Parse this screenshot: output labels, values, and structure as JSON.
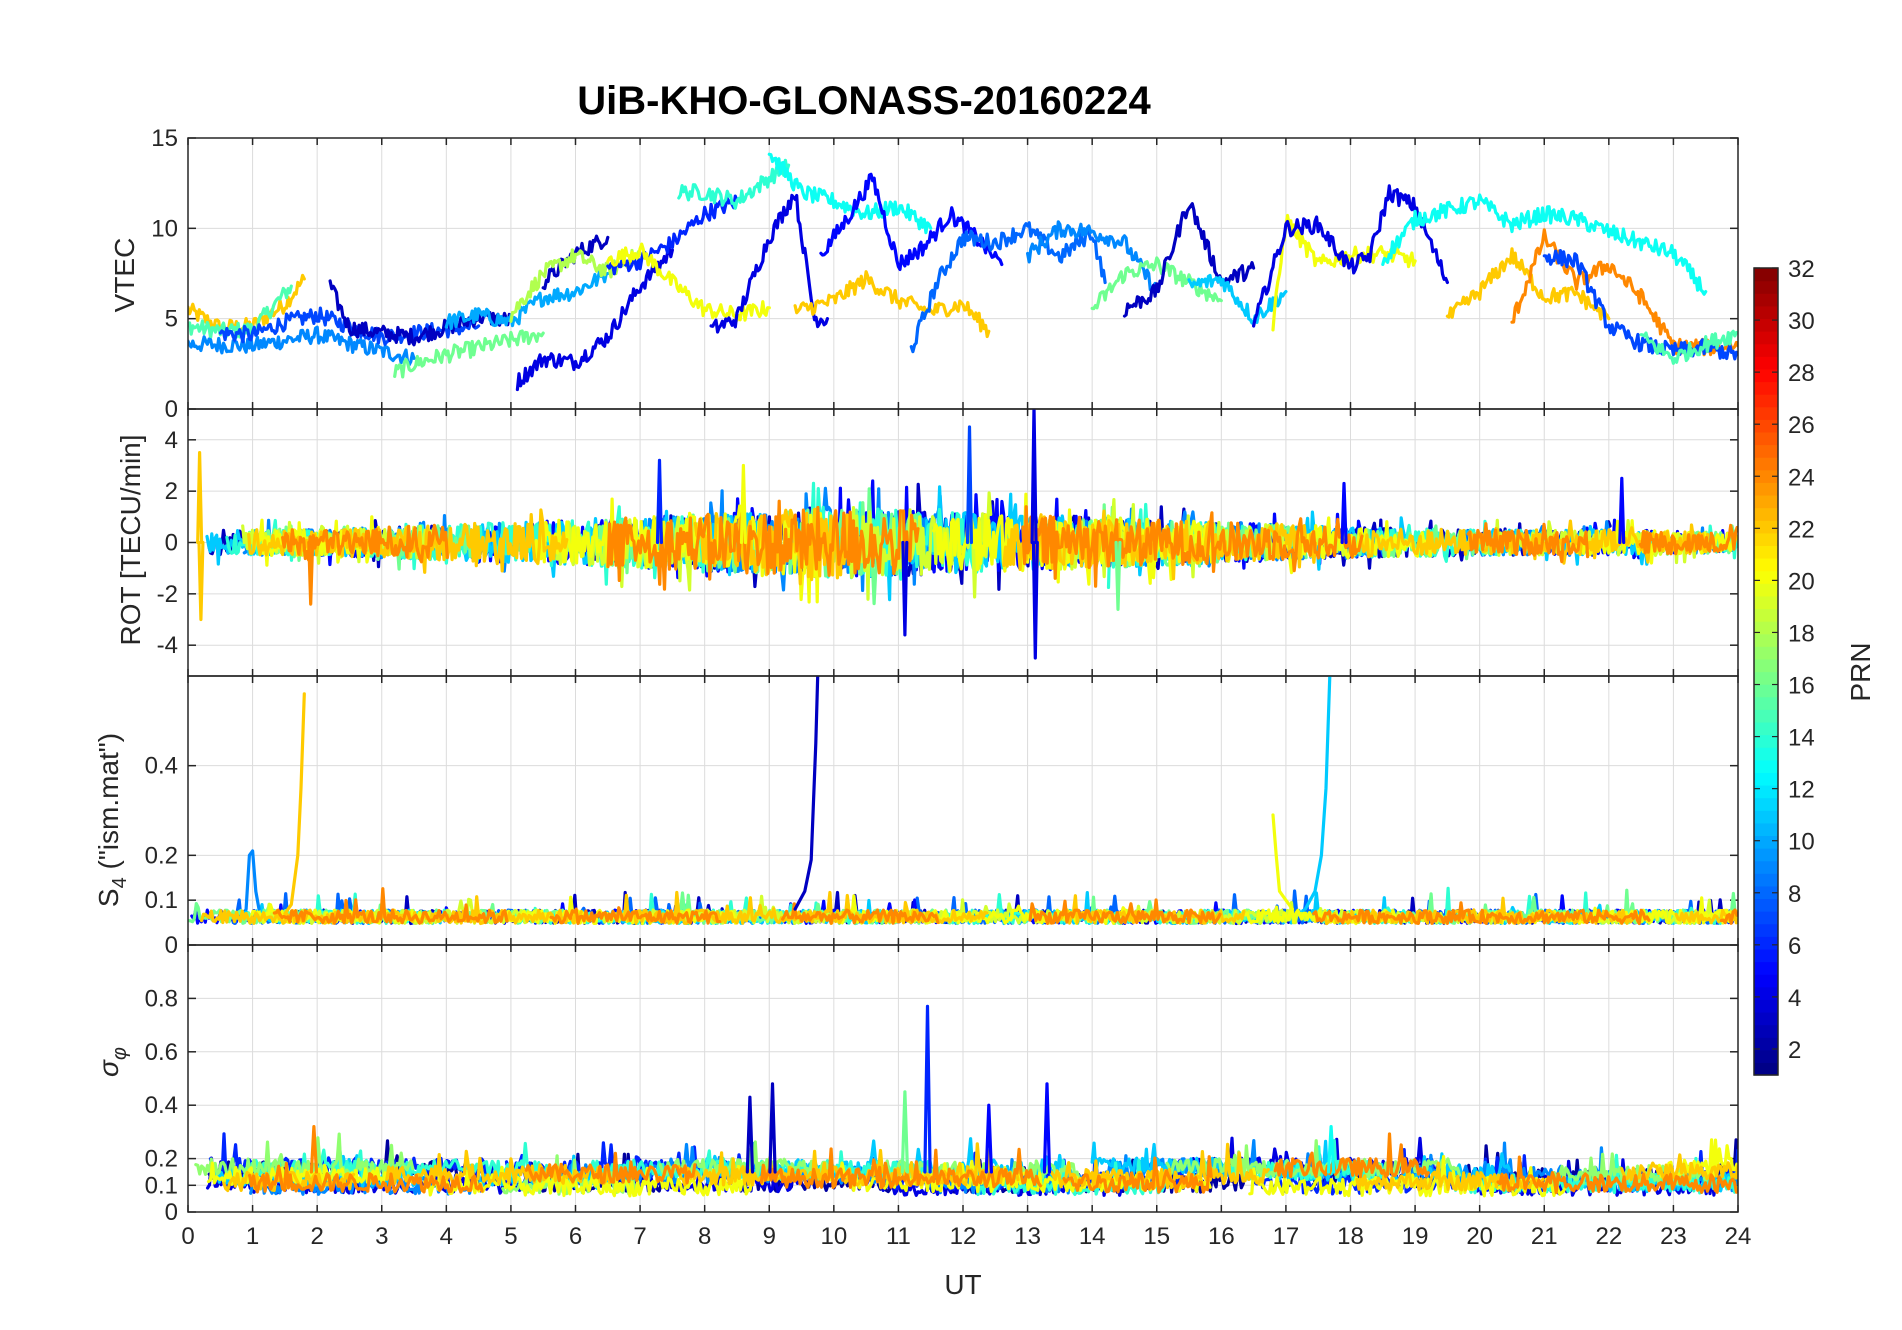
{
  "chart_data": [
    {
      "panel": "vtec",
      "type": "line",
      "title": "UiB-KHO-GLONASS-20160224",
      "xlabel": "",
      "ylabel": "VTEC",
      "xlim": [
        0,
        24
      ],
      "ylim": [
        0,
        15
      ],
      "xticks": [
        0,
        1,
        2,
        3,
        4,
        5,
        6,
        7,
        8,
        9,
        10,
        11,
        12,
        13,
        14,
        15,
        16,
        17,
        18,
        19,
        20,
        21,
        22,
        23,
        24
      ],
      "yticks": [
        0,
        5,
        10,
        15
      ],
      "ytick_labels": [
        "0",
        "5",
        "10",
        "15"
      ],
      "grid": true,
      "series": [
        {
          "prn": 22,
          "x": [
            0.0,
            0.5,
            1.0,
            1.5,
            1.8
          ],
          "y": [
            5.5,
            4.5,
            4.6,
            5.8,
            7.2
          ]
        },
        {
          "prn": 15,
          "x": [
            0.0,
            0.5,
            1.0,
            1.6
          ],
          "y": [
            4.6,
            4.3,
            4.4,
            6.8
          ]
        },
        {
          "prn": 9,
          "x": [
            0.0,
            1.0,
            2.0,
            2.5,
            3.0,
            3.5
          ],
          "y": [
            3.6,
            3.5,
            4.1,
            3.6,
            3.2,
            2.8
          ]
        },
        {
          "prn": 7,
          "x": [
            0.5,
            1.0,
            1.5,
            2.0,
            3.0,
            4.5
          ],
          "y": [
            4.2,
            4.1,
            4.8,
            5.2,
            4.0,
            4.6
          ]
        },
        {
          "prn": 3,
          "x": [
            2.2,
            2.5,
            3.0,
            3.5,
            4.0,
            4.5,
            5.0
          ],
          "y": [
            6.8,
            4.5,
            4.2,
            4.0,
            4.5,
            5.1,
            4.9
          ]
        },
        {
          "prn": 16,
          "x": [
            3.2,
            3.5,
            4.0,
            4.5,
            5.0,
            5.5
          ],
          "y": [
            2.0,
            2.5,
            3.0,
            3.4,
            3.8,
            4.2
          ]
        },
        {
          "prn": 10,
          "x": [
            4.0,
            4.5,
            5.0,
            5.5,
            6.0,
            6.5
          ],
          "y": [
            4.8,
            5.2,
            4.8,
            6.2,
            6.5,
            7.5
          ]
        },
        {
          "prn": 4,
          "x": [
            5.1,
            5.5,
            6.0,
            6.5,
            7.0,
            7.5
          ],
          "y": [
            1.5,
            2.8,
            2.6,
            4.0,
            6.8,
            8.8
          ]
        },
        {
          "prn": 3,
          "x": [
            5.5,
            6.0,
            6.5
          ],
          "y": [
            7.0,
            8.6,
            9.5
          ]
        },
        {
          "prn": 18,
          "x": [
            5.0,
            5.5,
            6.0,
            6.5,
            7.0
          ],
          "y": [
            5.2,
            7.5,
            8.5,
            7.6,
            8.6
          ]
        },
        {
          "prn": 6,
          "x": [
            6.5,
            7.0,
            7.5,
            8.0,
            8.5
          ],
          "y": [
            7.8,
            8.2,
            9.2,
            10.8,
            11.5
          ]
        },
        {
          "prn": 20,
          "x": [
            6.5,
            7.0,
            7.5,
            8.0,
            8.5,
            9.0
          ],
          "y": [
            8.2,
            8.8,
            7.0,
            5.5,
            5.2,
            5.6
          ]
        },
        {
          "prn": 14,
          "x": [
            7.6,
            8.0,
            8.5,
            9.0,
            9.3
          ],
          "y": [
            12.0,
            12.0,
            11.5,
            12.8,
            13.5
          ]
        },
        {
          "prn": 4,
          "x": [
            8.1,
            8.5,
            9.0,
            9.4,
            9.7,
            9.9
          ],
          "y": [
            4.4,
            5.0,
            9.5,
            12.0,
            5.0,
            5.0
          ]
        },
        {
          "prn": 13,
          "x": [
            9.0,
            9.5,
            10.0,
            10.5,
            11.0,
            11.5
          ],
          "y": [
            14.2,
            12.0,
            11.5,
            10.8,
            11.2,
            10.0
          ]
        },
        {
          "prn": 22,
          "x": [
            9.4,
            10.0,
            10.5,
            11.0,
            11.5,
            12.0,
            12.4
          ],
          "y": [
            5.4,
            6.0,
            7.2,
            6.0,
            5.4,
            5.8,
            4.3
          ]
        },
        {
          "prn": 5,
          "x": [
            9.8,
            10.2,
            10.6,
            11.0,
            11.4,
            11.8,
            12.2,
            12.6
          ],
          "y": [
            8.5,
            10.5,
            12.8,
            8.0,
            9.0,
            10.8,
            9.5,
            8.0
          ]
        },
        {
          "prn": 8,
          "x": [
            11.2,
            11.6,
            12.0,
            12.5,
            13.0,
            13.5,
            14.0,
            14.2
          ],
          "y": [
            3.3,
            7.0,
            9.5,
            9.2,
            10.0,
            8.4,
            9.8,
            7.0
          ]
        },
        {
          "prn": 9,
          "x": [
            13.0,
            13.5,
            14.0,
            14.5,
            15.0
          ],
          "y": [
            8.5,
            10.0,
            9.8,
            9.2,
            6.5
          ]
        },
        {
          "prn": 16,
          "x": [
            14.0,
            14.5,
            15.0,
            15.5,
            16.0
          ],
          "y": [
            5.5,
            7.5,
            8.0,
            7.0,
            6.0
          ]
        },
        {
          "prn": 3,
          "x": [
            14.5,
            15.0,
            15.5,
            16.0,
            16.5
          ],
          "y": [
            5.5,
            6.5,
            11.5,
            7.0,
            7.8
          ]
        },
        {
          "prn": 11,
          "x": [
            15.5,
            16.0,
            16.5,
            17.0
          ],
          "y": [
            6.8,
            7.2,
            5.0,
            6.5
          ]
        },
        {
          "prn": 20,
          "x": [
            16.8,
            17.0,
            17.5,
            18.0,
            18.5,
            19.0
          ],
          "y": [
            4.5,
            10.5,
            8.0,
            8.5,
            8.6,
            8.2
          ]
        },
        {
          "prn": 4,
          "x": [
            16.5,
            17.0,
            17.5,
            18.0,
            18.3,
            18.6,
            19.0,
            19.5
          ],
          "y": [
            4.6,
            10.0,
            10.2,
            7.8,
            8.5,
            12.0,
            11.2,
            7.0
          ]
        },
        {
          "prn": 13,
          "x": [
            18.5,
            19.0,
            19.5,
            20.0,
            20.5,
            21.0,
            21.5,
            22.0,
            22.5,
            23.0,
            23.5
          ],
          "y": [
            8.2,
            10.5,
            11.0,
            11.5,
            10.2,
            10.8,
            10.5,
            9.8,
            9.2,
            8.6,
            6.5
          ]
        },
        {
          "prn": 22,
          "x": [
            19.5,
            20.0,
            20.5,
            21.0,
            21.5,
            22.0
          ],
          "y": [
            5.0,
            6.5,
            8.5,
            6.2,
            6.4,
            5.0
          ]
        },
        {
          "prn": 24,
          "x": [
            20.5,
            21.0,
            21.5,
            22.0,
            22.5,
            23.0,
            23.5,
            24.0
          ],
          "y": [
            4.8,
            9.5,
            7.0,
            8.0,
            6.2,
            3.5,
            3.4,
            3.5
          ]
        },
        {
          "prn": 7,
          "x": [
            21.0,
            21.5,
            22.0,
            22.5,
            23.0,
            23.5,
            24.0
          ],
          "y": [
            8.5,
            8.2,
            4.6,
            3.6,
            3.2,
            3.4,
            3.0
          ]
        },
        {
          "prn": 15,
          "x": [
            22.5,
            23.0,
            23.5,
            24.0
          ],
          "y": [
            4.0,
            2.8,
            3.6,
            4.2
          ]
        }
      ]
    },
    {
      "panel": "rot",
      "type": "line",
      "ylabel": "ROT [TECU/min]",
      "xlim": [
        0,
        24
      ],
      "ylim": [
        -5.2,
        5.2
      ],
      "yticks": [
        -4,
        -2,
        0,
        2,
        4
      ],
      "ytick_labels": [
        "-4",
        "-2",
        "0",
        "2",
        "4"
      ],
      "grid": true,
      "noise_band_by_ut": {
        "ut": [
          0,
          2,
          4,
          6,
          8,
          10,
          12,
          14,
          16,
          18,
          20,
          22,
          24
        ],
        "amplitude": [
          0.5,
          0.5,
          0.7,
          0.9,
          1.1,
          1.4,
          1.2,
          1.0,
          0.8,
          0.6,
          0.5,
          0.5,
          0.4
        ]
      },
      "spikes": [
        {
          "prn": 22,
          "ut": 0.18,
          "value": 3.5
        },
        {
          "prn": 22,
          "ut": 0.2,
          "value": -3.0
        },
        {
          "prn": 24,
          "ut": 1.9,
          "value": -2.4
        },
        {
          "prn": 6,
          "ut": 7.3,
          "value": 3.2
        },
        {
          "prn": 20,
          "ut": 8.6,
          "value": 3.0
        },
        {
          "prn": 4,
          "ut": 11.1,
          "value": -3.6
        },
        {
          "prn": 7,
          "ut": 12.1,
          "value": 4.5
        },
        {
          "prn": 4,
          "ut": 13.1,
          "value": 5.3
        },
        {
          "prn": 4,
          "ut": 13.12,
          "value": -4.5
        },
        {
          "prn": 16,
          "ut": 14.4,
          "value": -2.6
        },
        {
          "prn": 5,
          "ut": 17.9,
          "value": 2.3
        },
        {
          "prn": 5,
          "ut": 22.2,
          "value": 2.5
        }
      ]
    },
    {
      "panel": "s4",
      "type": "line",
      "ylabel_main": "S",
      "ylabel_sub": "4",
      "ylabel_rest": " (\"ism.mat\")",
      "xlim": [
        0,
        24
      ],
      "ylim": [
        0,
        0.6
      ],
      "yticks": [
        0,
        0.1,
        0.2,
        0.4
      ],
      "ytick_labels": [
        "0",
        "0.1",
        "0.2",
        "0.4"
      ],
      "grid": true,
      "baseline": 0.06,
      "spikes": [
        {
          "prn": 9,
          "x": [
            0.9,
            0.95,
            1.0,
            1.05,
            1.1
          ],
          "y": [
            0.08,
            0.2,
            0.21,
            0.12,
            0.08
          ]
        },
        {
          "prn": 22,
          "x": [
            1.5,
            1.6,
            1.7,
            1.75,
            1.8
          ],
          "y": [
            0.07,
            0.09,
            0.2,
            0.35,
            0.56
          ]
        },
        {
          "prn": 3,
          "x": [
            9.4,
            9.55,
            9.65,
            9.72,
            9.75
          ],
          "y": [
            0.08,
            0.12,
            0.19,
            0.45,
            0.6
          ]
        },
        {
          "prn": 20,
          "x": [
            16.8,
            16.85,
            16.9,
            17.0,
            17.1
          ],
          "y": [
            0.29,
            0.2,
            0.12,
            0.1,
            0.08
          ]
        },
        {
          "prn": 11,
          "x": [
            17.3,
            17.45,
            17.55,
            17.62,
            17.68
          ],
          "y": [
            0.08,
            0.12,
            0.2,
            0.35,
            0.6
          ]
        }
      ]
    },
    {
      "panel": "sigma_phi",
      "type": "line",
      "ylabel": "σ",
      "ylabel_sub": "φ",
      "xlabel": "UT",
      "xlim": [
        0,
        24
      ],
      "ylim": [
        0,
        1
      ],
      "yticks": [
        0,
        0.1,
        0.2,
        0.4,
        0.6,
        0.8
      ],
      "ytick_labels": [
        "0",
        "0.1",
        "0.2",
        "0.4",
        "0.6",
        "0.8"
      ],
      "xtick_labels": [
        "0",
        "1",
        "2",
        "3",
        "4",
        "5",
        "6",
        "7",
        "8",
        "9",
        "10",
        "11",
        "12",
        "13",
        "14",
        "15",
        "16",
        "17",
        "18",
        "19",
        "20",
        "21",
        "22",
        "23",
        "24"
      ],
      "grid": true,
      "baseline": 0.13,
      "spikes": [
        {
          "prn": 24,
          "ut": 1.95,
          "value": 0.32
        },
        {
          "prn": 3,
          "ut": 8.7,
          "value": 0.43
        },
        {
          "prn": 3,
          "ut": 9.05,
          "value": 0.48
        },
        {
          "prn": 16,
          "ut": 11.1,
          "value": 0.45
        },
        {
          "prn": 6,
          "ut": 11.45,
          "value": 0.77
        },
        {
          "prn": 5,
          "ut": 12.4,
          "value": 0.4
        },
        {
          "prn": 5,
          "ut": 13.3,
          "value": 0.48
        },
        {
          "prn": 13,
          "ut": 17.7,
          "value": 0.32
        }
      ]
    },
    {
      "panel": "colorbar",
      "type": "heatmap",
      "label": "PRN",
      "colormap": "jet",
      "clim": [
        1,
        32
      ],
      "ticks": [
        2,
        4,
        6,
        8,
        10,
        12,
        14,
        16,
        18,
        20,
        22,
        24,
        26,
        28,
        30,
        32
      ],
      "tick_labels": [
        "2",
        "4",
        "6",
        "8",
        "10",
        "12",
        "14",
        "16",
        "18",
        "20",
        "22",
        "24",
        "26",
        "28",
        "30",
        "32"
      ]
    }
  ]
}
